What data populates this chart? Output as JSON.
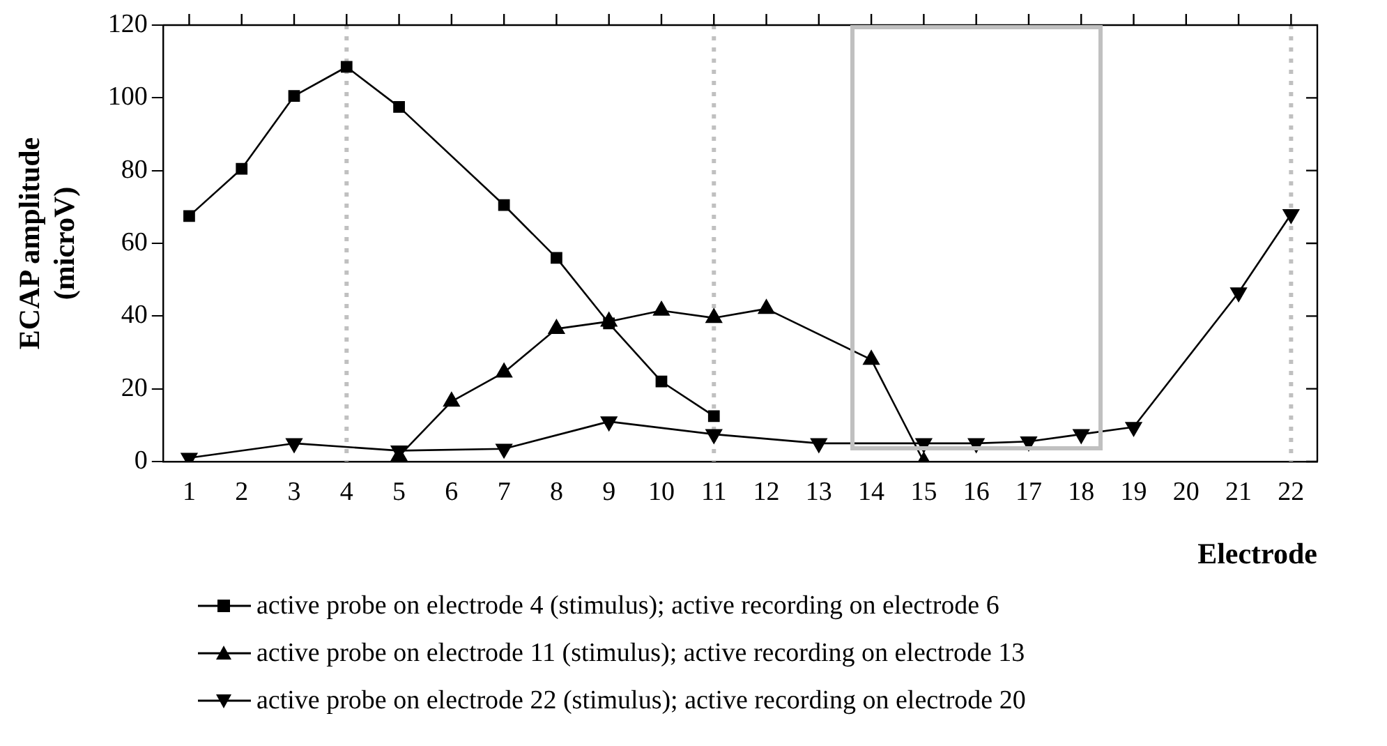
{
  "chart_data": {
    "type": "line",
    "xlabel": "Electrode",
    "ylabel": "ECAP amplitude (microV)",
    "x": [
      1,
      2,
      3,
      4,
      5,
      6,
      7,
      8,
      9,
      10,
      11,
      12,
      13,
      14,
      15,
      16,
      17,
      18,
      19,
      20,
      21,
      22
    ],
    "xlim": [
      0.5,
      22.5
    ],
    "xticks": [
      1,
      2,
      3,
      4,
      5,
      6,
      7,
      8,
      9,
      10,
      11,
      12,
      13,
      14,
      15,
      16,
      17,
      18,
      19,
      20,
      21,
      22
    ],
    "ylim": [
      0,
      120
    ],
    "yticks": [
      0,
      20,
      40,
      60,
      80,
      100,
      120
    ],
    "series": [
      {
        "name": "active probe on electrode 4 (stimulus); active recording on electrode 6",
        "color": "#000000",
        "marker": "square",
        "values": [
          67.5,
          80.5,
          100.5,
          108.5,
          97.5,
          null,
          70.5,
          56,
          38,
          22,
          12.5,
          null,
          null,
          null,
          null,
          null,
          null,
          null,
          null,
          null,
          null,
          null
        ]
      },
      {
        "name": "active probe on electrode 11 (stimulus); active recording on electrode 13",
        "color": "#000000",
        "marker": "triangle",
        "values": [
          null,
          null,
          null,
          null,
          1.5,
          16.5,
          24.5,
          36.5,
          38.5,
          41.5,
          39.5,
          42,
          null,
          28,
          0,
          null,
          null,
          null,
          null,
          null,
          null,
          null
        ]
      },
      {
        "name": "active probe on electrode 22 (stimulus); active recording on electrode 20",
        "color": "#000000",
        "marker": "triangle-down",
        "values": [
          1,
          null,
          5,
          null,
          3,
          null,
          3.5,
          null,
          11,
          null,
          7.5,
          null,
          5,
          null,
          5,
          5,
          5.5,
          7.5,
          9.5,
          null,
          46.5,
          68
        ]
      }
    ],
    "ref_lines": [
      {
        "axis": "x",
        "value": 4,
        "color": "#c0c0c0",
        "line_style": "dotted"
      },
      {
        "axis": "x",
        "value": 11,
        "color": "#c0c0c0",
        "line_style": "dotted"
      },
      {
        "axis": "x",
        "value": 22,
        "color": "#c0c0c0",
        "line_style": "dotted"
      }
    ],
    "legend": "bottom",
    "grid": false,
    "line_style": "solid"
  }
}
